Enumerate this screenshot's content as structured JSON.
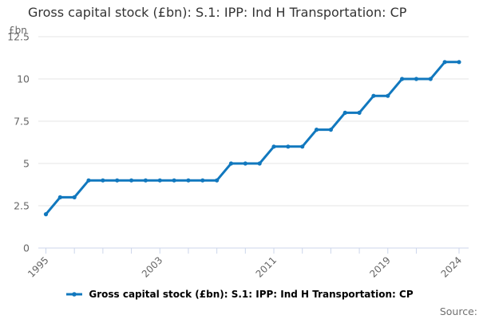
{
  "title": "Gross capital stock (£bn): S.1: IPP: Ind H Transportation: CP",
  "y_axis": {
    "unit_label": "£bn",
    "ticks": [
      0,
      2.5,
      5,
      7.5,
      10,
      12.5
    ],
    "tick_labels": [
      "0",
      "2.5",
      "5",
      "7.5",
      "10",
      "12.5"
    ],
    "min": 0,
    "max": 12.5
  },
  "x_axis": {
    "tick_years": [
      1995,
      1997,
      1999,
      2001,
      2003,
      2005,
      2007,
      2009,
      2011,
      2013,
      2015,
      2017,
      2019,
      2021,
      2024
    ],
    "labeled_years": [
      1995,
      2003,
      2011,
      2019,
      2024
    ],
    "range": [
      1995,
      2024
    ]
  },
  "legend": {
    "label": "Gross capital stock (£bn): S.1: IPP: Ind H Transportation: CP",
    "position": "bottom"
  },
  "source": {
    "label": "Source:"
  },
  "colors": {
    "line": "#1178be",
    "grid": "#e6e6e6",
    "axis": "#ccd6eb",
    "tick_label": "#666666",
    "title_text": "#333333",
    "legend_text": "#000000",
    "source_text": "#707070"
  },
  "chart_data": {
    "type": "line",
    "title": "Gross capital stock (£bn): S.1: IPP: Ind H Transportation: CP",
    "xlabel": "",
    "ylabel": "£bn",
    "ylim": [
      0,
      12.5
    ],
    "grid": true,
    "legend_position": "bottom",
    "x": [
      1995,
      1996,
      1997,
      1998,
      1999,
      2000,
      2001,
      2002,
      2003,
      2004,
      2005,
      2006,
      2007,
      2008,
      2009,
      2010,
      2011,
      2012,
      2013,
      2014,
      2015,
      2016,
      2017,
      2018,
      2019,
      2020,
      2021,
      2022,
      2023,
      2024
    ],
    "series": [
      {
        "name": "Gross capital stock (£bn): S.1: IPP: Ind H Transportation: CP",
        "values": [
          2,
          3,
          3,
          4,
          4,
          4,
          4,
          4,
          4,
          4,
          4,
          4,
          4,
          5,
          5,
          5,
          6,
          6,
          6,
          7,
          7,
          8,
          8,
          9,
          9,
          10,
          10,
          10,
          11,
          11
        ]
      }
    ]
  }
}
